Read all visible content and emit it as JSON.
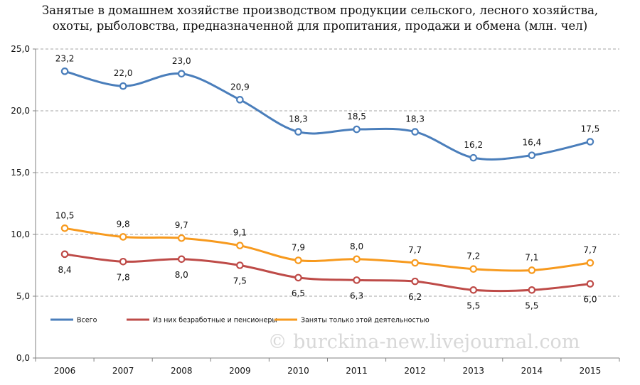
{
  "title_lines": [
    "Занятые в домашнем хозяйстве производством продукции сельского, лесного хозяйства,",
    "охоты, рыболовства, предназначенной для пропитания, продажи и обмена (млн. чел)"
  ],
  "watermark": "© burckina-new.livejournal.com",
  "chart_data": {
    "type": "line",
    "title": "Занятые в домашнем хозяйстве производством продукции сельского, лесного хозяйства, охоты, рыболовства, предназначенной для пропитания, продажи и обмена (млн. чел)",
    "x": [
      "2006",
      "2007",
      "2008",
      "2009",
      "2010",
      "2011",
      "2012",
      "2013",
      "2014",
      "2015"
    ],
    "ylim": [
      0,
      25
    ],
    "yticks": [
      0,
      5,
      10,
      15,
      20,
      25
    ],
    "ytick_labels": [
      "0,0",
      "5,0",
      "10,0",
      "15,0",
      "20,0",
      "25,0"
    ],
    "grid": "horizontal dashed",
    "legend_position": "bottom-left inside plot",
    "series": [
      {
        "name": "Всего",
        "color": "#4a7ebb",
        "values": [
          23.2,
          22.0,
          23.0,
          20.9,
          18.3,
          18.5,
          18.3,
          16.2,
          16.4,
          17.5
        ],
        "labels": [
          "23,2",
          "22,0",
          "23,0",
          "20,9",
          "18,3",
          "18,5",
          "18,3",
          "16,2",
          "16,4",
          "17,5"
        ],
        "label_position": "above"
      },
      {
        "name": "Из них безработные и пенсионеры",
        "color": "#be4b48",
        "values": [
          8.4,
          7.8,
          8.0,
          7.5,
          6.5,
          6.3,
          6.2,
          5.5,
          5.5,
          6.0
        ],
        "labels": [
          "8,4",
          "7,8",
          "8,0",
          "7,5",
          "6,5",
          "6,3",
          "6,2",
          "5,5",
          "5,5",
          "6,0"
        ],
        "label_position": "below"
      },
      {
        "name": "Заняты только этой деятельностью",
        "color": "#f79a1e",
        "values": [
          10.5,
          9.8,
          9.7,
          9.1,
          7.9,
          8.0,
          7.7,
          7.2,
          7.1,
          7.7
        ],
        "labels": [
          "10,5",
          "9,8",
          "9,7",
          "9,1",
          "7,9",
          "8,0",
          "7,7",
          "7,2",
          "7,1",
          "7,7"
        ],
        "label_position": "above"
      }
    ]
  }
}
